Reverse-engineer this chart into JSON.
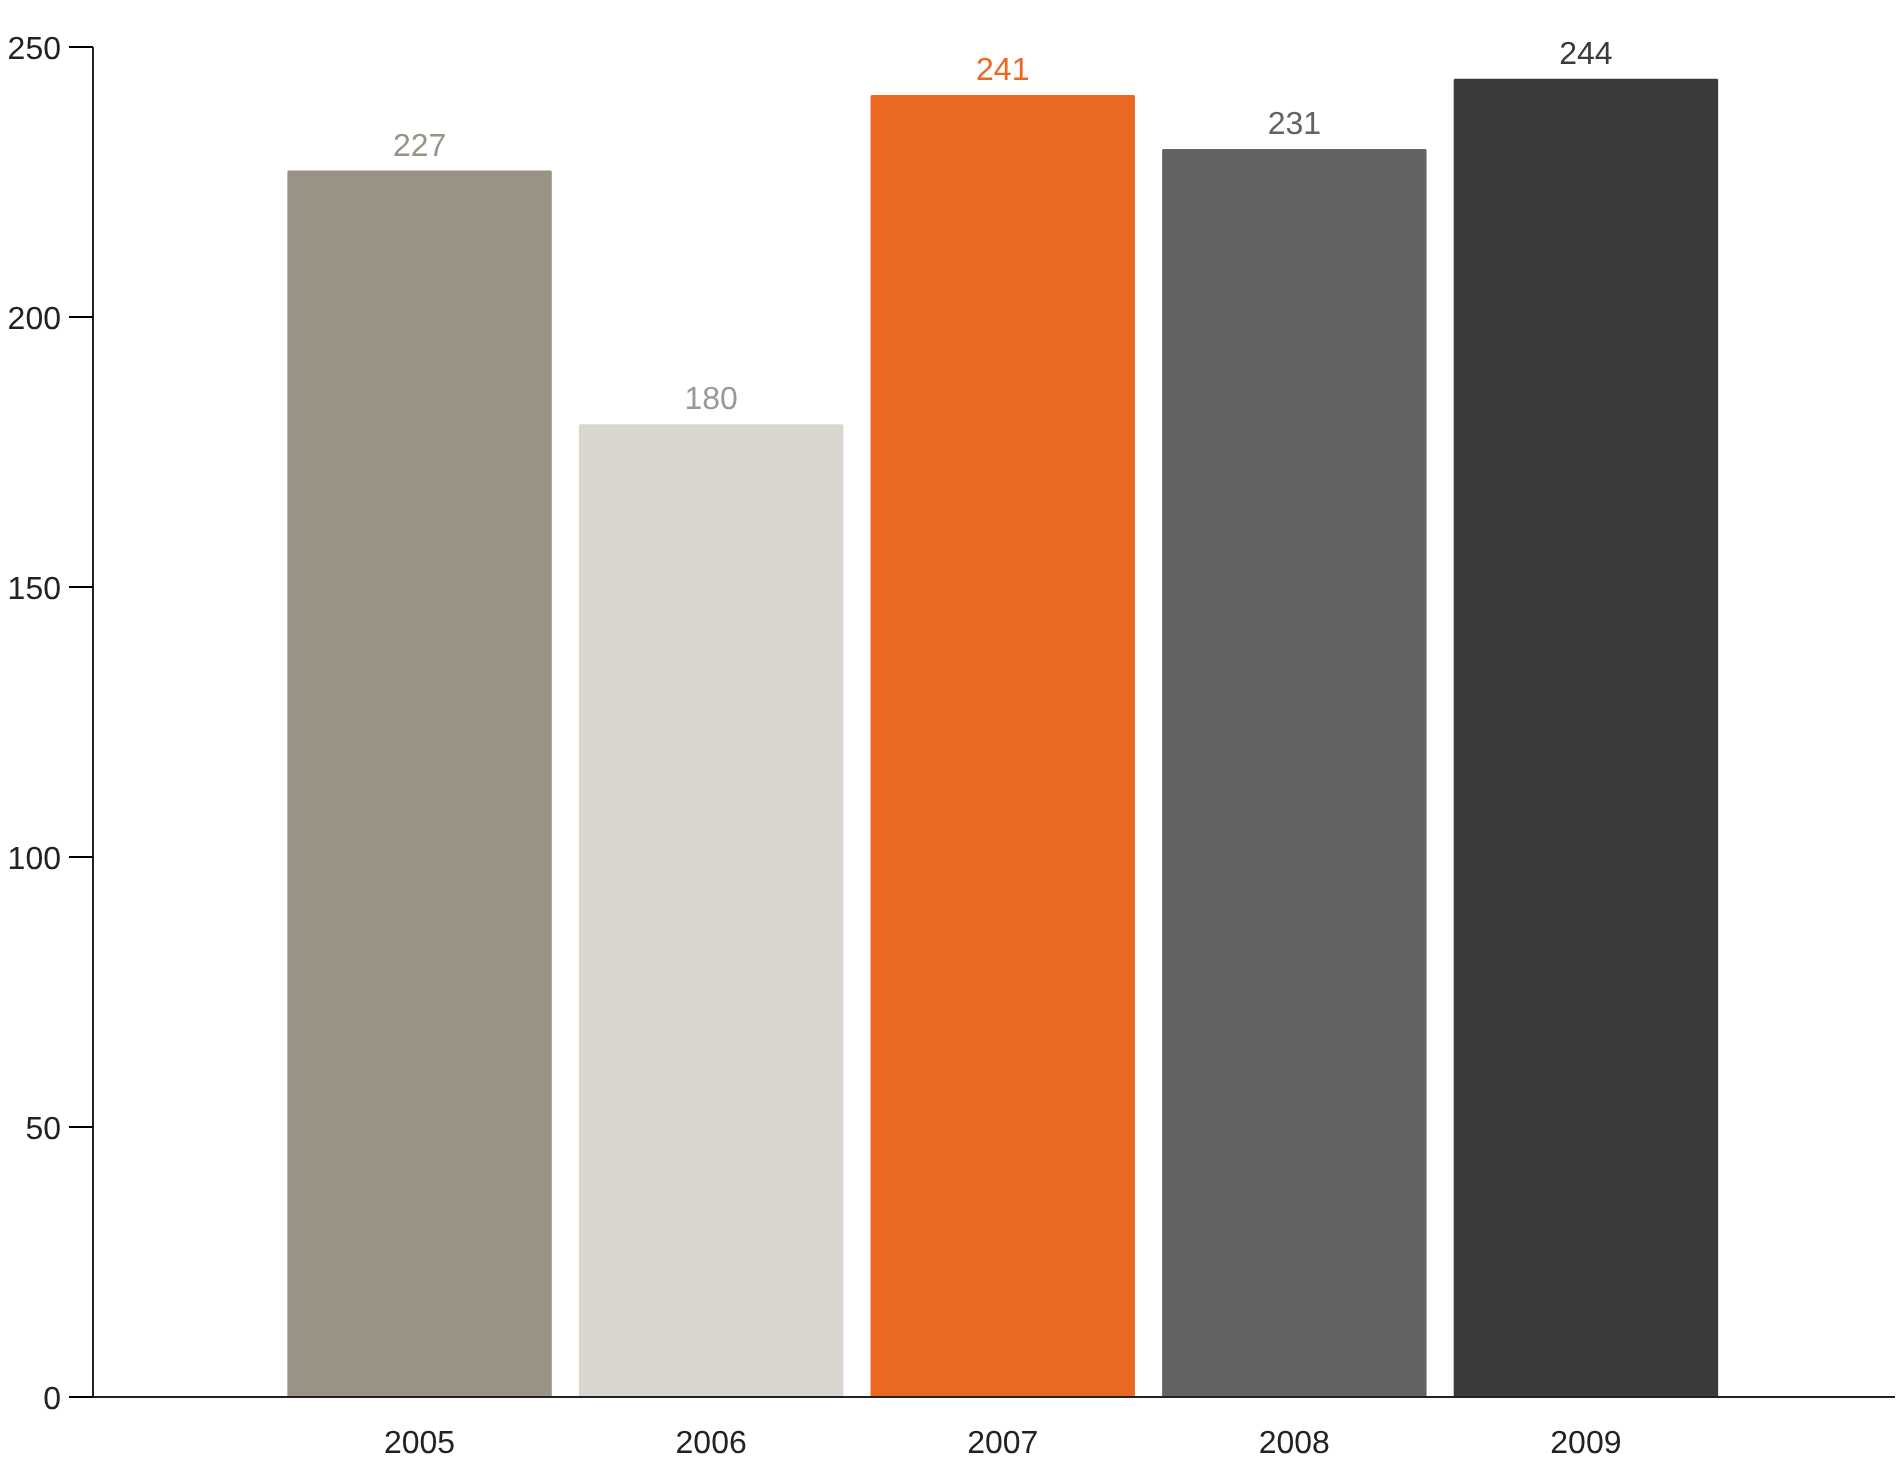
{
  "chart_data": {
    "type": "bar",
    "categories": [
      "2005",
      "2006",
      "2007",
      "2008",
      "2009"
    ],
    "values": [
      227,
      180,
      241,
      231,
      244
    ],
    "colors": [
      "#9a9285",
      "#d9d5cf",
      "#eb6823",
      "#636361",
      "#3c3b39"
    ],
    "ylim": [
      0,
      250
    ],
    "yticks": [
      0,
      50,
      100,
      150,
      200,
      250
    ],
    "grid": false,
    "data_labels": true
  }
}
